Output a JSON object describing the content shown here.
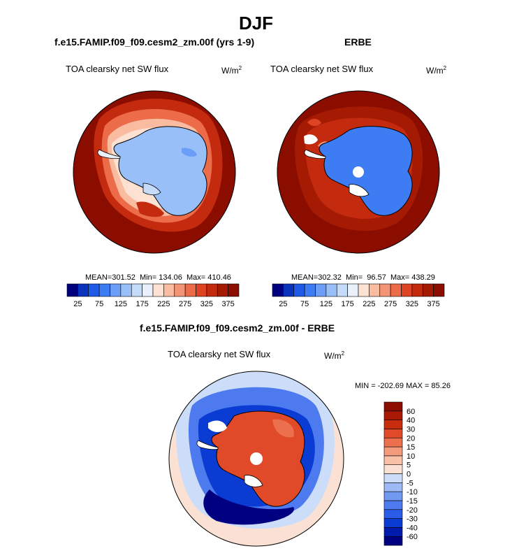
{
  "title": "DJF",
  "panels": [
    {
      "title": "f.e15.FAMIP.f09_f09.cesm2_zm.00f (yrs 1-9)",
      "variable": "TOA clearsky net SW flux",
      "units_base": "W/m",
      "units_sup": "2",
      "mean": "301.52",
      "min": "134.06",
      "max": "410.46"
    },
    {
      "title": "ERBE",
      "variable": "TOA clearsky net SW flux",
      "units_base": "W/m",
      "units_sup": "2",
      "mean": "302.32",
      "min": "96.57",
      "max": "438.29"
    }
  ],
  "stats_labels": {
    "mean": "MEAN=",
    "min": "Min=",
    "max": "Max="
  },
  "diff_panel": {
    "title": "f.e15.FAMIP.f09_f09.cesm2_zm.00f - ERBE",
    "variable": "TOA clearsky net SW flux",
    "units_base": "W/m",
    "units_sup": "2",
    "minmax_text": "MIN = -202.69 MAX =  85.26"
  },
  "chart_data": [
    {
      "type": "heatmap",
      "projection": "south-polar-stereographic",
      "title": "f.e15.FAMIP.f09_f09.cesm2_zm.00f (yrs 1-9)",
      "variable": "TOA clearsky net SW flux",
      "units": "W/m2",
      "stats": {
        "mean": 301.52,
        "min": 134.06,
        "max": 410.46
      },
      "colorbar_ticks": [
        25,
        75,
        125,
        175,
        225,
        275,
        325,
        375
      ],
      "colorbar_colors": [
        "#00007f",
        "#0a33bd",
        "#1f5ae6",
        "#3d7cf2",
        "#6a9ef7",
        "#99bff9",
        "#c4dcfa",
        "#ebf1fb",
        "#fde1d2",
        "#f9bca0",
        "#f39477",
        "#ec6b49",
        "#de4423",
        "#c32a0e",
        "#a41a03",
        "#8a0d00"
      ]
    },
    {
      "type": "heatmap",
      "projection": "south-polar-stereographic",
      "title": "ERBE",
      "variable": "TOA clearsky net SW flux",
      "units": "W/m2",
      "stats": {
        "mean": 302.32,
        "min": 96.57,
        "max": 438.29
      },
      "colorbar_ticks": [
        25,
        75,
        125,
        175,
        225,
        275,
        325,
        375
      ],
      "colorbar_colors": [
        "#00007f",
        "#0a33bd",
        "#1f5ae6",
        "#3d7cf2",
        "#6a9ef7",
        "#99bff9",
        "#c4dcfa",
        "#ebf1fb",
        "#fde1d2",
        "#f9bca0",
        "#f39477",
        "#ec6b49",
        "#de4423",
        "#c32a0e",
        "#a41a03",
        "#8a0d00"
      ]
    },
    {
      "type": "heatmap",
      "projection": "south-polar-stereographic",
      "title": "f.e15.FAMIP.f09_f09.cesm2_zm.00f - ERBE",
      "variable": "TOA clearsky net SW flux",
      "units": "W/m2",
      "stats": {
        "min": -202.69,
        "max": 85.26
      },
      "colorbar_ticks": [
        -60,
        -40,
        -30,
        -20,
        -15,
        -10,
        -5,
        0,
        5,
        10,
        15,
        20,
        30,
        40,
        60
      ],
      "colorbar_colors": [
        "#000080",
        "#001aad",
        "#0a3cd4",
        "#2a5ce8",
        "#4d7bef",
        "#7299f2",
        "#9dbaf6",
        "#ccddf9",
        "#fbe1d3",
        "#f8c1a8",
        "#f49a7c",
        "#ec6f4e",
        "#e04a28",
        "#c92d10",
        "#a81a05",
        "#8b0d00"
      ]
    }
  ]
}
